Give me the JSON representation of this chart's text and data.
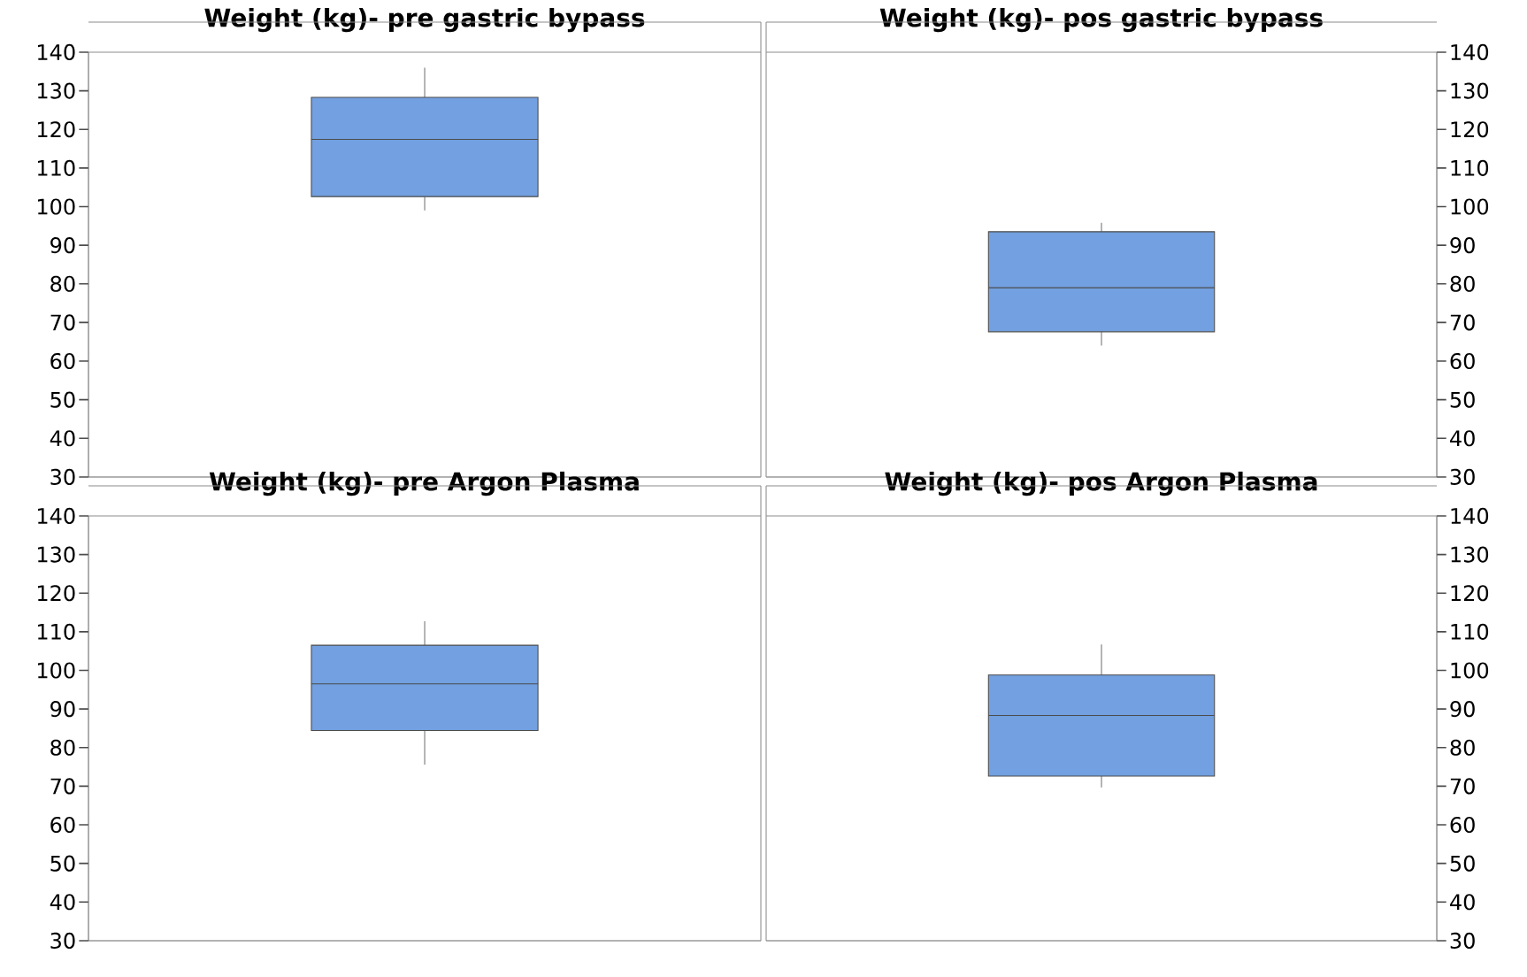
{
  "chart_data": [
    {
      "type": "box",
      "title": "Weight (kg)- pre gastric bypass",
      "categories": [
        null
      ],
      "color": "#72a0e0",
      "ylim": [
        30,
        140
      ],
      "yticks": [
        30,
        40,
        50,
        60,
        70,
        80,
        90,
        100,
        110,
        120,
        130,
        140
      ],
      "boxes": [
        {
          "low": 99,
          "q1": 102.6,
          "median": 117.4,
          "q3": 128.3,
          "high": 136
        }
      ]
    },
    {
      "type": "box",
      "title": "Weight (kg)- pos gastric bypass",
      "categories": [
        null
      ],
      "color": "#72a0e0",
      "ylim": [
        30,
        140
      ],
      "yticks": [
        30,
        40,
        50,
        60,
        70,
        80,
        90,
        100,
        110,
        120,
        130,
        140
      ],
      "boxes": [
        {
          "low": 64,
          "q1": 67.6,
          "median": 79,
          "q3": 93.5,
          "high": 95.8
        }
      ]
    },
    {
      "type": "box",
      "title": "Weight (kg)- pre Argon Plasma",
      "categories": [
        null
      ],
      "color": "#72a0e0",
      "ylim": [
        30,
        140
      ],
      "yticks": [
        30,
        40,
        50,
        60,
        70,
        80,
        90,
        100,
        110,
        120,
        130,
        140
      ],
      "boxes": [
        {
          "low": 75.6,
          "q1": 84.4,
          "median": 96.5,
          "q3": 106.5,
          "high": 112.7
        }
      ]
    },
    {
      "type": "box",
      "title": "Weight (kg)- pos Argon Plasma",
      "categories": [
        null
      ],
      "color": "#72a0e0",
      "ylim": [
        30,
        140
      ],
      "yticks": [
        30,
        40,
        50,
        60,
        70,
        80,
        90,
        100,
        110,
        120,
        130,
        140
      ],
      "boxes": [
        {
          "low": 69.7,
          "q1": 72.6,
          "median": 88.3,
          "q3": 98.8,
          "high": 106.7
        }
      ]
    }
  ]
}
